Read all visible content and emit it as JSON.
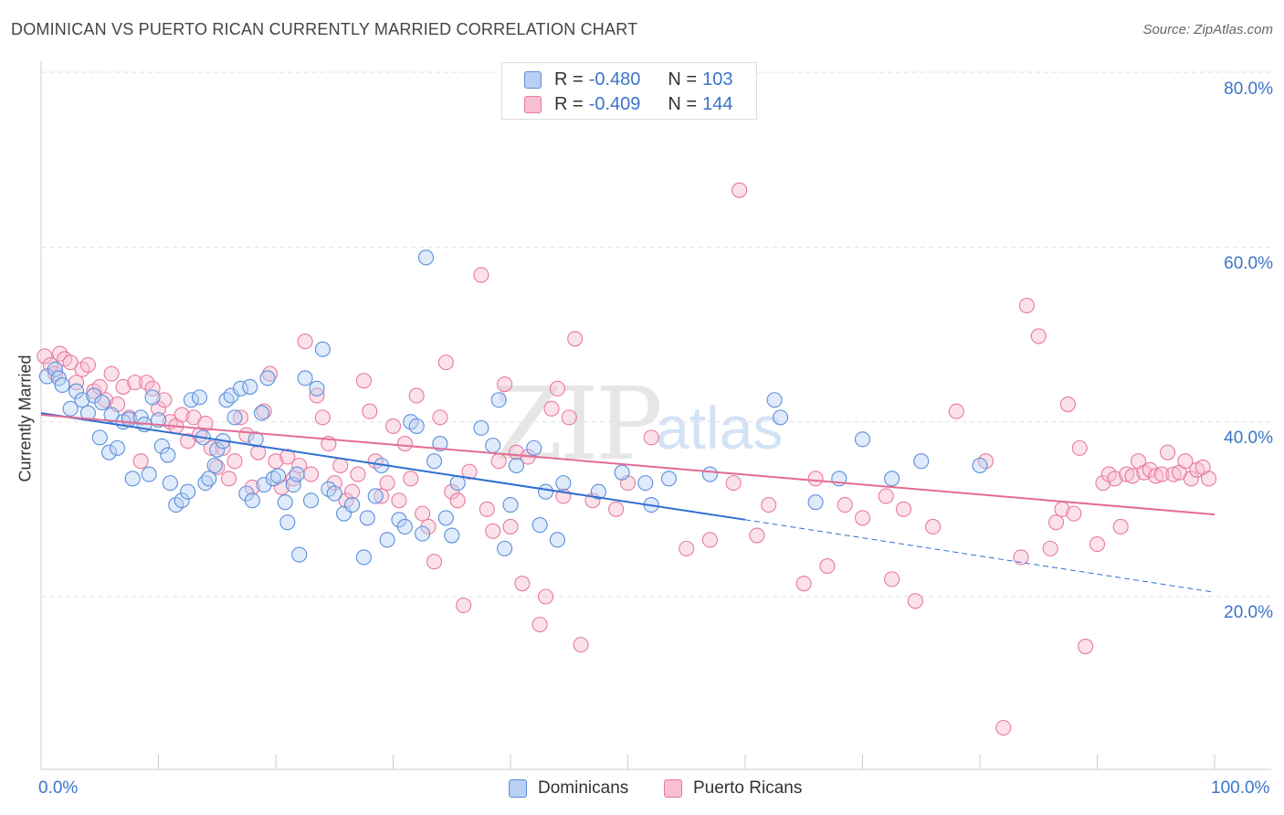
{
  "title": "DOMINICAN VS PUERTO RICAN CURRENTLY MARRIED CORRELATION CHART",
  "source": "Source: ZipAtlas.com",
  "watermark": {
    "zip": "ZIP",
    "atlas": "atlas"
  },
  "legend_top": [
    {
      "r_label": "R =",
      "r_value": "-0.480",
      "n_label": "N =",
      "n_value": "103"
    },
    {
      "r_label": "R =",
      "r_value": "-0.409",
      "n_label": "N =",
      "n_value": "144"
    }
  ],
  "legend_bottom": [
    "Dominicans",
    "Puerto Ricans"
  ],
  "y_axis_label": "Currently Married",
  "x_ticks": {
    "min": "0.0%",
    "max": "100.0%"
  },
  "y_ticks": [
    "80.0%",
    "60.0%",
    "40.0%",
    "20.0%"
  ],
  "colors": {
    "blue": "#5b8fdb",
    "blue_fill": "#b8d0f3",
    "pink": "#e8799f",
    "pink_fill": "#f7bfd1",
    "blue_line": "#2f6fd0",
    "pink_line": "#e36b95",
    "accent": "#3a74c9"
  },
  "chart_data": {
    "type": "scatter",
    "title": "DOMINICAN VS PUERTO RICAN CURRENTLY MARRIED CORRELATION CHART",
    "xlabel": "",
    "ylabel": "Currently Married",
    "xlim": [
      0,
      100
    ],
    "ylim": [
      0,
      83
    ],
    "x_ticks": [
      0,
      100
    ],
    "y_ticks": [
      20,
      40,
      60,
      80
    ],
    "grid": true,
    "legend_position": "top-center",
    "series": [
      {
        "name": "Dominicans",
        "R": -0.48,
        "N": 103,
        "trend": {
          "x0": 0,
          "y0": 41.0,
          "x1": 60,
          "y1": 28.8,
          "dashed_to": 100,
          "y_dashed_end": 20.5
        },
        "points": [
          [
            0.5,
            45.2
          ],
          [
            1.2,
            46.0
          ],
          [
            1.5,
            45.0
          ],
          [
            1.8,
            44.2
          ],
          [
            2.5,
            41.5
          ],
          [
            3.0,
            43.5
          ],
          [
            3.5,
            42.5
          ],
          [
            4.0,
            41.0
          ],
          [
            4.5,
            43.0
          ],
          [
            5.0,
            38.2
          ],
          [
            5.2,
            42.2
          ],
          [
            5.8,
            36.5
          ],
          [
            6.0,
            40.8
          ],
          [
            6.5,
            37.0
          ],
          [
            7.0,
            40.0
          ],
          [
            7.5,
            40.3
          ],
          [
            7.8,
            33.5
          ],
          [
            8.5,
            40.5
          ],
          [
            8.8,
            39.7
          ],
          [
            9.2,
            34.0
          ],
          [
            9.5,
            42.8
          ],
          [
            10.0,
            40.2
          ],
          [
            10.3,
            37.2
          ],
          [
            10.8,
            36.2
          ],
          [
            11.0,
            33.0
          ],
          [
            11.5,
            30.5
          ],
          [
            12.0,
            31.0
          ],
          [
            12.5,
            32.0
          ],
          [
            12.8,
            42.5
          ],
          [
            13.5,
            42.8
          ],
          [
            13.8,
            38.2
          ],
          [
            14.0,
            33.0
          ],
          [
            14.3,
            33.5
          ],
          [
            14.8,
            35.0
          ],
          [
            15.0,
            36.8
          ],
          [
            15.5,
            37.8
          ],
          [
            15.8,
            42.5
          ],
          [
            16.2,
            43.0
          ],
          [
            16.5,
            40.5
          ],
          [
            17.0,
            43.8
          ],
          [
            17.5,
            31.8
          ],
          [
            17.8,
            44.0
          ],
          [
            18.0,
            31.0
          ],
          [
            18.3,
            38.0
          ],
          [
            18.8,
            41.0
          ],
          [
            19.0,
            32.8
          ],
          [
            19.3,
            45.0
          ],
          [
            19.8,
            33.5
          ],
          [
            20.2,
            33.8
          ],
          [
            20.8,
            30.8
          ],
          [
            21.0,
            28.5
          ],
          [
            21.5,
            32.8
          ],
          [
            21.8,
            34.0
          ],
          [
            22.0,
            24.8
          ],
          [
            22.5,
            45.0
          ],
          [
            23.0,
            31.0
          ],
          [
            23.5,
            43.8
          ],
          [
            24.0,
            48.3
          ],
          [
            24.5,
            32.3
          ],
          [
            25.0,
            31.8
          ],
          [
            25.8,
            29.5
          ],
          [
            26.5,
            30.5
          ],
          [
            27.5,
            24.5
          ],
          [
            27.8,
            29.0
          ],
          [
            28.5,
            31.5
          ],
          [
            29.0,
            35.0
          ],
          [
            29.5,
            26.5
          ],
          [
            30.5,
            28.8
          ],
          [
            31.0,
            28.0
          ],
          [
            31.5,
            40.0
          ],
          [
            32.0,
            39.5
          ],
          [
            32.5,
            27.2
          ],
          [
            32.8,
            58.8
          ],
          [
            33.5,
            35.5
          ],
          [
            34.0,
            37.5
          ],
          [
            34.5,
            29.0
          ],
          [
            35.0,
            27.0
          ],
          [
            35.5,
            33.0
          ],
          [
            37.5,
            39.3
          ],
          [
            38.5,
            37.3
          ],
          [
            39.0,
            42.5
          ],
          [
            39.5,
            25.5
          ],
          [
            40.0,
            30.5
          ],
          [
            40.5,
            35.0
          ],
          [
            42.0,
            37.0
          ],
          [
            42.5,
            28.2
          ],
          [
            43.0,
            32.0
          ],
          [
            44.0,
            26.5
          ],
          [
            44.5,
            33.0
          ],
          [
            47.5,
            32.0
          ],
          [
            49.5,
            34.2
          ],
          [
            51.5,
            33.0
          ],
          [
            52.0,
            30.5
          ],
          [
            53.5,
            33.5
          ],
          [
            57.0,
            34.0
          ],
          [
            62.5,
            42.5
          ],
          [
            63.0,
            40.5
          ],
          [
            66.0,
            30.8
          ],
          [
            68.0,
            33.5
          ],
          [
            70.0,
            38.0
          ],
          [
            72.5,
            33.5
          ],
          [
            75.0,
            35.5
          ],
          [
            80.0,
            35.0
          ]
        ]
      },
      {
        "name": "Puerto Ricans",
        "R": -0.409,
        "N": 144,
        "trend": {
          "x0": 0,
          "y0": 40.8,
          "x1": 100,
          "y1": 29.4
        },
        "points": [
          [
            0.3,
            47.5
          ],
          [
            0.8,
            46.5
          ],
          [
            1.2,
            45.5
          ],
          [
            1.6,
            47.8
          ],
          [
            2.0,
            47.2
          ],
          [
            2.5,
            46.8
          ],
          [
            3.0,
            44.5
          ],
          [
            3.5,
            46.0
          ],
          [
            4.0,
            46.5
          ],
          [
            4.5,
            43.5
          ],
          [
            5.0,
            44.0
          ],
          [
            5.5,
            42.5
          ],
          [
            6.0,
            45.5
          ],
          [
            6.5,
            42.0
          ],
          [
            7.0,
            44.0
          ],
          [
            7.5,
            40.5
          ],
          [
            8.0,
            44.5
          ],
          [
            8.5,
            35.5
          ],
          [
            9.0,
            44.5
          ],
          [
            9.5,
            43.8
          ],
          [
            10.0,
            41.5
          ],
          [
            10.5,
            42.5
          ],
          [
            11.0,
            40.0
          ],
          [
            11.5,
            39.5
          ],
          [
            12.0,
            40.8
          ],
          [
            12.5,
            37.8
          ],
          [
            13.0,
            40.5
          ],
          [
            13.5,
            38.5
          ],
          [
            14.0,
            39.8
          ],
          [
            14.5,
            37.0
          ],
          [
            15.0,
            34.8
          ],
          [
            15.5,
            37.0
          ],
          [
            16.0,
            33.5
          ],
          [
            16.5,
            35.5
          ],
          [
            17.0,
            40.5
          ],
          [
            17.5,
            38.5
          ],
          [
            18.0,
            32.5
          ],
          [
            18.5,
            36.5
          ],
          [
            19.0,
            41.2
          ],
          [
            19.5,
            45.5
          ],
          [
            20.0,
            35.5
          ],
          [
            20.5,
            32.5
          ],
          [
            21.0,
            36.0
          ],
          [
            21.5,
            33.5
          ],
          [
            22.0,
            35.0
          ],
          [
            22.5,
            49.2
          ],
          [
            23.0,
            34.0
          ],
          [
            23.5,
            43.0
          ],
          [
            24.0,
            40.5
          ],
          [
            24.5,
            37.5
          ],
          [
            25.0,
            33.0
          ],
          [
            25.5,
            35.0
          ],
          [
            26.0,
            31.0
          ],
          [
            26.5,
            32.0
          ],
          [
            27.0,
            34.0
          ],
          [
            27.5,
            44.7
          ],
          [
            28.0,
            41.2
          ],
          [
            28.5,
            35.5
          ],
          [
            29.0,
            31.5
          ],
          [
            29.5,
            33.0
          ],
          [
            30.0,
            39.5
          ],
          [
            30.5,
            31.0
          ],
          [
            31.0,
            37.5
          ],
          [
            31.5,
            33.5
          ],
          [
            32.0,
            43.0
          ],
          [
            32.5,
            29.5
          ],
          [
            33.0,
            28.0
          ],
          [
            33.5,
            24.0
          ],
          [
            34.0,
            40.5
          ],
          [
            34.5,
            46.8
          ],
          [
            35.0,
            32.0
          ],
          [
            35.5,
            31.0
          ],
          [
            36.0,
            19.0
          ],
          [
            36.5,
            34.3
          ],
          [
            37.5,
            56.8
          ],
          [
            38.0,
            30.0
          ],
          [
            38.5,
            27.5
          ],
          [
            39.0,
            35.5
          ],
          [
            39.5,
            44.3
          ],
          [
            40.0,
            28.0
          ],
          [
            40.5,
            36.5
          ],
          [
            41.0,
            21.5
          ],
          [
            41.5,
            36.0
          ],
          [
            42.5,
            16.8
          ],
          [
            43.0,
            20.0
          ],
          [
            43.5,
            41.5
          ],
          [
            44.0,
            43.8
          ],
          [
            44.5,
            31.5
          ],
          [
            45.0,
            40.5
          ],
          [
            45.5,
            49.5
          ],
          [
            46.0,
            14.5
          ],
          [
            47.0,
            31.0
          ],
          [
            49.0,
            30.0
          ],
          [
            50.0,
            33.0
          ],
          [
            52.0,
            38.2
          ],
          [
            55.0,
            25.5
          ],
          [
            57.0,
            26.5
          ],
          [
            59.0,
            33.0
          ],
          [
            59.5,
            66.5
          ],
          [
            61.0,
            27.0
          ],
          [
            62.0,
            30.5
          ],
          [
            65.0,
            21.5
          ],
          [
            66.0,
            33.5
          ],
          [
            67.0,
            23.5
          ],
          [
            68.5,
            30.5
          ],
          [
            70.0,
            29.0
          ],
          [
            72.0,
            31.5
          ],
          [
            72.5,
            22.0
          ],
          [
            73.5,
            30.0
          ],
          [
            74.5,
            19.5
          ],
          [
            76.0,
            28.0
          ],
          [
            78.0,
            41.2
          ],
          [
            80.5,
            35.5
          ],
          [
            82.0,
            5.0
          ],
          [
            83.5,
            24.5
          ],
          [
            84.0,
            53.3
          ],
          [
            85.0,
            49.8
          ],
          [
            86.0,
            25.5
          ],
          [
            86.5,
            28.5
          ],
          [
            87.0,
            30.0
          ],
          [
            87.5,
            42.0
          ],
          [
            88.0,
            29.5
          ],
          [
            88.5,
            37.0
          ],
          [
            89.0,
            14.3
          ],
          [
            90.0,
            26.0
          ],
          [
            90.5,
            33.0
          ],
          [
            91.0,
            34.0
          ],
          [
            91.5,
            33.5
          ],
          [
            92.0,
            28.0
          ],
          [
            92.5,
            34.0
          ],
          [
            93.0,
            33.8
          ],
          [
            93.5,
            35.5
          ],
          [
            94.0,
            34.2
          ],
          [
            94.5,
            34.5
          ],
          [
            95.0,
            33.8
          ],
          [
            95.5,
            34.0
          ],
          [
            96.0,
            36.5
          ],
          [
            96.5,
            34.0
          ],
          [
            97.0,
            34.2
          ],
          [
            97.5,
            35.5
          ],
          [
            98.0,
            33.5
          ],
          [
            98.5,
            34.5
          ],
          [
            99.0,
            34.8
          ],
          [
            99.5,
            33.5
          ]
        ]
      }
    ]
  }
}
